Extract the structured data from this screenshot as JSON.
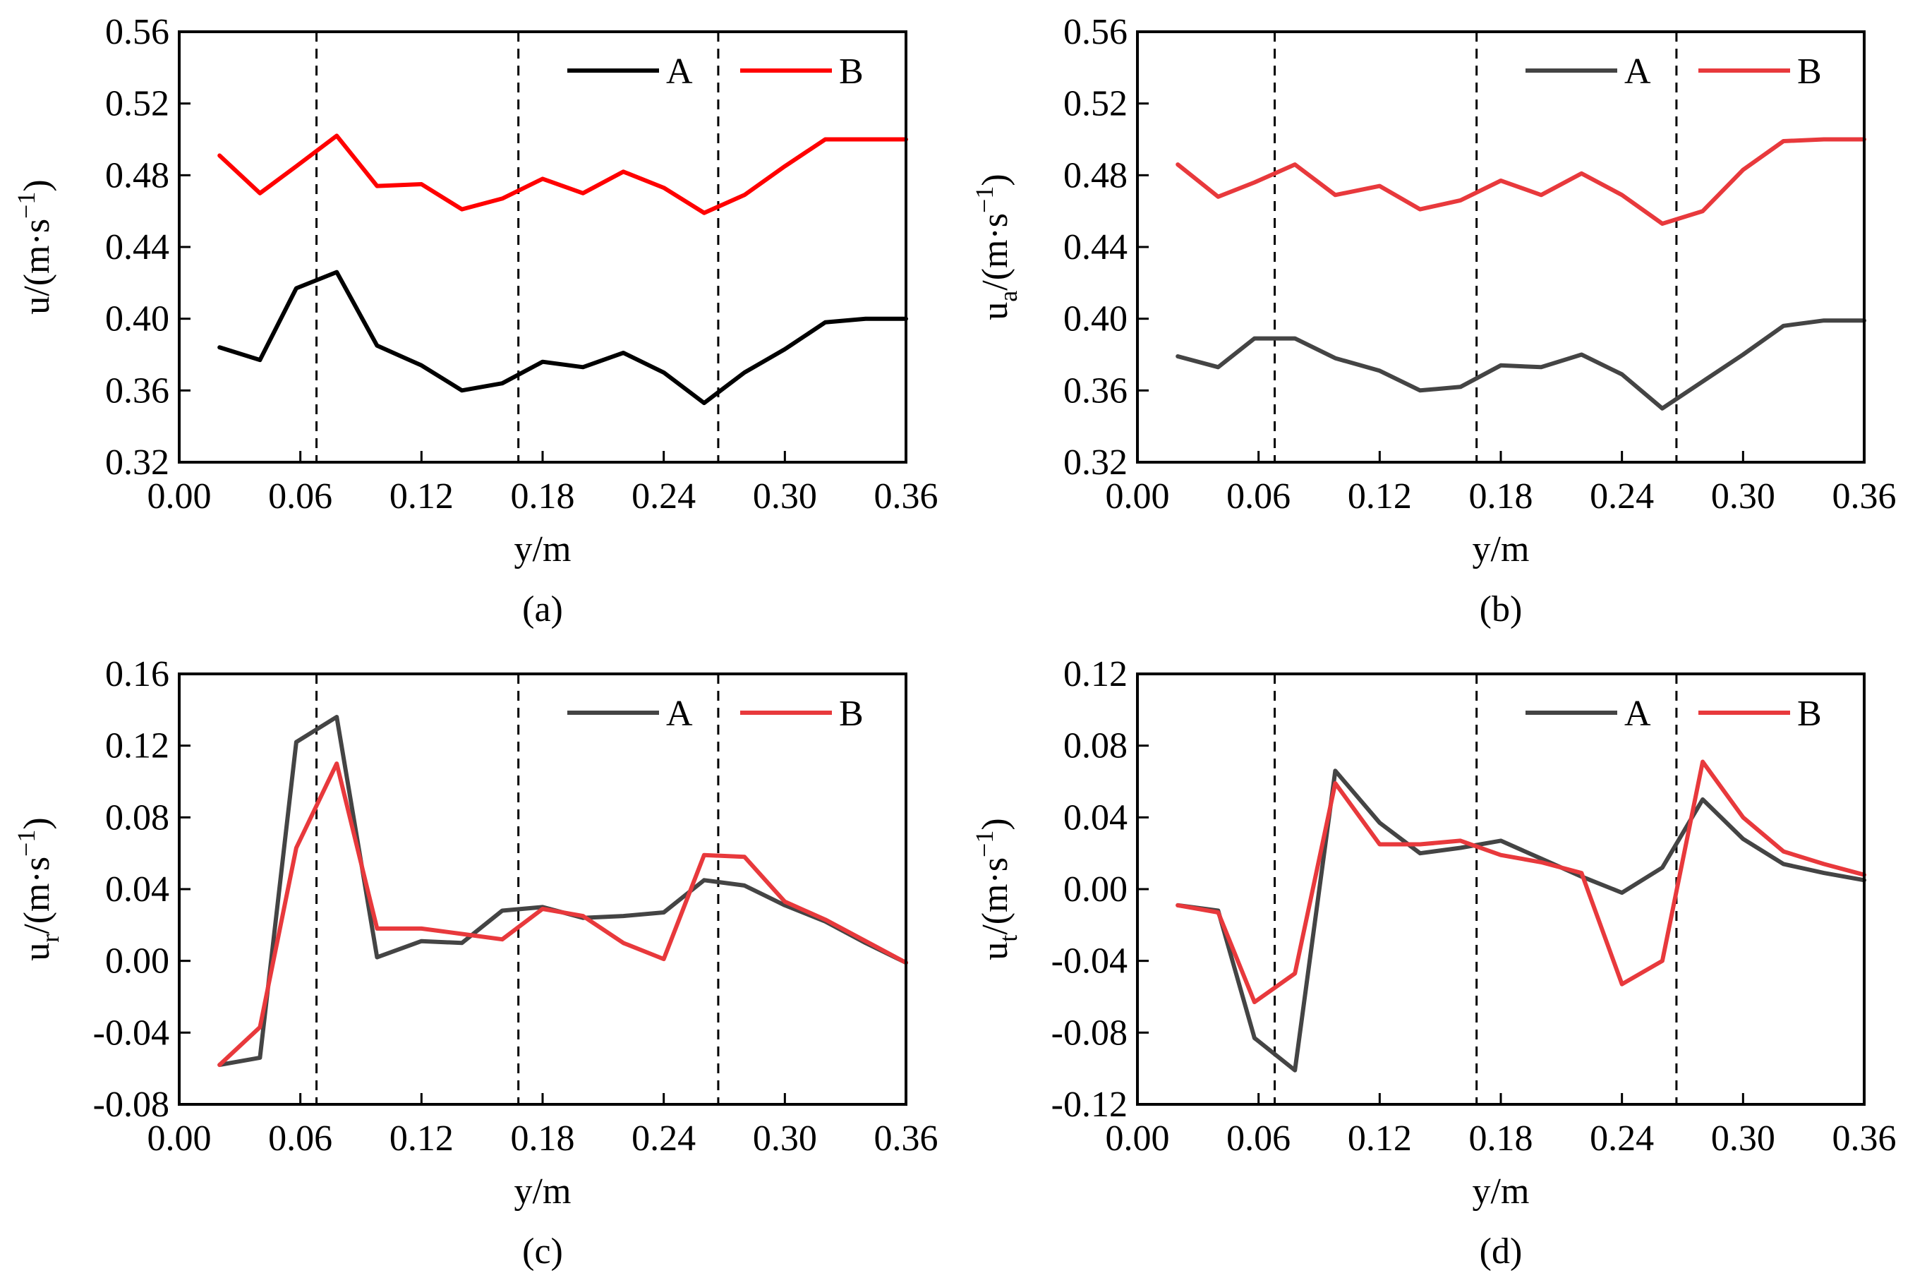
{
  "colors": {
    "a_series_A": "#000000",
    "a_series_B": "#ff0000",
    "series_A": "#444444",
    "series_B": "#e8393c",
    "axes": "#000000",
    "divider_lines": "#000000"
  },
  "chart_data": [
    {
      "type": "line",
      "panel_label": "(a)",
      "xlabel": "y/m",
      "ylabel": {
        "base": "u",
        "sub": "",
        "unit_pre": "/(m·s",
        "sup": "−1",
        "unit_post": ")"
      },
      "xlim": [
        0.0,
        0.36
      ],
      "ylim": [
        0.32,
        0.56
      ],
      "xticks": [
        0.0,
        0.06,
        0.12,
        0.18,
        0.24,
        0.3,
        0.36
      ],
      "xtick_labels": [
        "0.00",
        "0.06",
        "0.12",
        "0.18",
        "0.24",
        "0.30",
        "0.36"
      ],
      "yticks": [
        0.32,
        0.36,
        0.4,
        0.44,
        0.48,
        0.52,
        0.56
      ],
      "ytick_labels": [
        "0.32",
        "0.36",
        "0.40",
        "0.44",
        "0.48",
        "0.52",
        "0.56"
      ],
      "vlines": [
        0.068,
        0.168,
        0.267
      ],
      "grid": false,
      "legend_position": "top-right",
      "series": [
        {
          "name": "A",
          "color": "#000000",
          "x": [
            0.02,
            0.04,
            0.058,
            0.078,
            0.098,
            0.12,
            0.14,
            0.16,
            0.18,
            0.2,
            0.22,
            0.24,
            0.26,
            0.28,
            0.3,
            0.32,
            0.34,
            0.36
          ],
          "y": [
            0.384,
            0.377,
            0.417,
            0.426,
            0.385,
            0.374,
            0.36,
            0.364,
            0.376,
            0.373,
            0.381,
            0.37,
            0.353,
            0.37,
            0.383,
            0.398,
            0.4,
            0.4
          ]
        },
        {
          "name": "B",
          "color": "#ff0000",
          "x": [
            0.02,
            0.04,
            0.058,
            0.078,
            0.098,
            0.12,
            0.14,
            0.16,
            0.18,
            0.2,
            0.22,
            0.24,
            0.26,
            0.28,
            0.3,
            0.32,
            0.34,
            0.36
          ],
          "y": [
            0.491,
            0.47,
            0.485,
            0.502,
            0.474,
            0.475,
            0.461,
            0.467,
            0.478,
            0.47,
            0.482,
            0.473,
            0.459,
            0.469,
            0.485,
            0.5,
            0.5,
            0.5
          ]
        }
      ]
    },
    {
      "type": "line",
      "panel_label": "(b)",
      "xlabel": "y/m",
      "ylabel": {
        "base": "u",
        "sub": "a",
        "unit_pre": "/(m·s",
        "sup": "−1",
        "unit_post": ")"
      },
      "xlim": [
        0.0,
        0.36
      ],
      "ylim": [
        0.32,
        0.56
      ],
      "xticks": [
        0.0,
        0.06,
        0.12,
        0.18,
        0.24,
        0.3,
        0.36
      ],
      "xtick_labels": [
        "0.00",
        "0.06",
        "0.12",
        "0.18",
        "0.24",
        "0.30",
        "0.36"
      ],
      "yticks": [
        0.32,
        0.36,
        0.4,
        0.44,
        0.48,
        0.52,
        0.56
      ],
      "ytick_labels": [
        "0.32",
        "0.36",
        "0.40",
        "0.44",
        "0.48",
        "0.52",
        "0.56"
      ],
      "vlines": [
        0.068,
        0.168,
        0.267
      ],
      "grid": false,
      "legend_position": "top-right",
      "series": [
        {
          "name": "A",
          "color": "#444444",
          "x": [
            0.02,
            0.04,
            0.058,
            0.078,
            0.098,
            0.12,
            0.14,
            0.16,
            0.18,
            0.2,
            0.22,
            0.24,
            0.26,
            0.28,
            0.3,
            0.32,
            0.34,
            0.36
          ],
          "y": [
            0.379,
            0.373,
            0.389,
            0.389,
            0.378,
            0.371,
            0.36,
            0.362,
            0.374,
            0.373,
            0.38,
            0.369,
            0.35,
            0.365,
            0.38,
            0.396,
            0.399,
            0.399
          ]
        },
        {
          "name": "B",
          "color": "#e8393c",
          "x": [
            0.02,
            0.04,
            0.058,
            0.078,
            0.098,
            0.12,
            0.14,
            0.16,
            0.18,
            0.2,
            0.22,
            0.24,
            0.26,
            0.28,
            0.3,
            0.32,
            0.34,
            0.36
          ],
          "y": [
            0.486,
            0.468,
            0.476,
            0.486,
            0.469,
            0.474,
            0.461,
            0.466,
            0.477,
            0.469,
            0.481,
            0.469,
            0.453,
            0.46,
            0.483,
            0.499,
            0.5,
            0.5
          ]
        }
      ]
    },
    {
      "type": "line",
      "panel_label": "(c)",
      "xlabel": "y/m",
      "ylabel": {
        "base": "u",
        "sub": "r",
        "unit_pre": "/(m·s",
        "sup": "−1",
        "unit_post": ")"
      },
      "xlim": [
        0.0,
        0.36
      ],
      "ylim": [
        -0.08,
        0.16
      ],
      "xticks": [
        0.0,
        0.06,
        0.12,
        0.18,
        0.24,
        0.3,
        0.36
      ],
      "xtick_labels": [
        "0.00",
        "0.06",
        "0.12",
        "0.18",
        "0.24",
        "0.30",
        "0.36"
      ],
      "yticks": [
        -0.08,
        -0.04,
        0.0,
        0.04,
        0.08,
        0.12,
        0.16
      ],
      "ytick_labels": [
        "-0.08",
        "-0.04",
        "0.00",
        "0.04",
        "0.08",
        "0.12",
        "0.16"
      ],
      "vlines": [
        0.068,
        0.168,
        0.267
      ],
      "grid": false,
      "legend_position": "top-right",
      "series": [
        {
          "name": "A",
          "color": "#444444",
          "x": [
            0.02,
            0.04,
            0.058,
            0.078,
            0.098,
            0.12,
            0.14,
            0.16,
            0.18,
            0.2,
            0.22,
            0.24,
            0.26,
            0.28,
            0.3,
            0.32,
            0.34,
            0.36
          ],
          "y": [
            -0.058,
            -0.054,
            0.122,
            0.136,
            0.002,
            0.011,
            0.01,
            0.028,
            0.03,
            0.024,
            0.025,
            0.027,
            0.045,
            0.042,
            0.031,
            0.022,
            0.01,
            -0.001
          ]
        },
        {
          "name": "B",
          "color": "#e8393c",
          "x": [
            0.02,
            0.04,
            0.058,
            0.078,
            0.098,
            0.12,
            0.14,
            0.16,
            0.18,
            0.2,
            0.22,
            0.24,
            0.26,
            0.28,
            0.3,
            0.32,
            0.34,
            0.36
          ],
          "y": [
            -0.058,
            -0.037,
            0.063,
            0.11,
            0.018,
            0.018,
            0.015,
            0.012,
            0.029,
            0.025,
            0.01,
            0.001,
            0.059,
            0.058,
            0.033,
            0.023,
            0.011,
            -0.001
          ]
        }
      ]
    },
    {
      "type": "line",
      "panel_label": "(d)",
      "xlabel": "y/m",
      "ylabel": {
        "base": "u",
        "sub": "t",
        "unit_pre": "/(m·s",
        "sup": "−1",
        "unit_post": ")"
      },
      "xlim": [
        0.0,
        0.36
      ],
      "ylim": [
        -0.12,
        0.12
      ],
      "xticks": [
        0.0,
        0.06,
        0.12,
        0.18,
        0.24,
        0.3,
        0.36
      ],
      "xtick_labels": [
        "0.00",
        "0.06",
        "0.12",
        "0.18",
        "0.24",
        "0.30",
        "0.36"
      ],
      "yticks": [
        -0.12,
        -0.08,
        -0.04,
        0.0,
        0.04,
        0.08,
        0.12
      ],
      "ytick_labels": [
        "-0.12",
        "-0.08",
        "-0.04",
        "0.00",
        "0.04",
        "0.08",
        "0.12"
      ],
      "vlines": [
        0.068,
        0.168,
        0.267
      ],
      "grid": false,
      "legend_position": "top-right",
      "series": [
        {
          "name": "A",
          "color": "#444444",
          "x": [
            0.02,
            0.04,
            0.058,
            0.078,
            0.098,
            0.12,
            0.14,
            0.16,
            0.18,
            0.2,
            0.22,
            0.24,
            0.26,
            0.28,
            0.3,
            0.32,
            0.34,
            0.36
          ],
          "y": [
            -0.009,
            -0.012,
            -0.083,
            -0.101,
            0.066,
            0.037,
            0.02,
            0.023,
            0.027,
            0.017,
            0.007,
            -0.002,
            0.012,
            0.05,
            0.028,
            0.014,
            0.009,
            0.005
          ]
        },
        {
          "name": "B",
          "color": "#e8393c",
          "x": [
            0.02,
            0.04,
            0.058,
            0.078,
            0.098,
            0.12,
            0.14,
            0.16,
            0.18,
            0.2,
            0.22,
            0.24,
            0.26,
            0.28,
            0.3,
            0.32,
            0.34,
            0.36
          ],
          "y": [
            -0.009,
            -0.013,
            -0.063,
            -0.047,
            0.059,
            0.025,
            0.025,
            0.027,
            0.019,
            0.015,
            0.009,
            -0.053,
            -0.04,
            0.071,
            0.04,
            0.021,
            0.014,
            0.008
          ]
        }
      ]
    }
  ]
}
